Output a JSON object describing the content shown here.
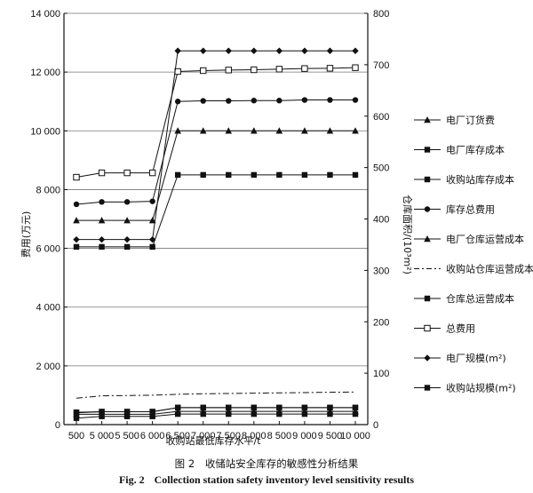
{
  "chart_data": {
    "type": "line",
    "categories": [
      "500",
      "5 000",
      "5 500",
      "6 000",
      "6 500",
      "7 000",
      "7 500",
      "8 000",
      "8 500",
      "9 000",
      "9 500",
      "10 000"
    ],
    "xlabel": "收购站最低库存水平/t",
    "ylabel_left": "费用(万元)",
    "ylabel_right": "仓库面积/(10³m²)",
    "ylim_left": [
      0,
      14000
    ],
    "yticks_left": [
      0,
      2000,
      4000,
      6000,
      8000,
      10000,
      12000,
      14000
    ],
    "ytick_labels_left": [
      "0",
      "2 000",
      "4 000",
      "6 000",
      "8 000",
      "10 000",
      "12 000",
      "14 000"
    ],
    "ylim_right": [
      0,
      800
    ],
    "yticks_right": [
      0,
      100,
      200,
      300,
      400,
      500,
      600,
      700,
      800
    ],
    "ytick_labels_right": [
      "0",
      "100",
      "200",
      "300",
      "400",
      "500",
      "600",
      "700",
      "800"
    ],
    "grid": true,
    "legend_position": "right",
    "series": [
      {
        "name": "电厂订货费",
        "marker": "triangle",
        "style": "solid",
        "axis": "left",
        "values": [
          350,
          350,
          350,
          350,
          450,
          450,
          450,
          450,
          450,
          450,
          450,
          450
        ]
      },
      {
        "name": "电厂库存成本",
        "marker": "square",
        "style": "solid",
        "axis": "left",
        "values": [
          220,
          280,
          280,
          280,
          360,
          360,
          360,
          360,
          360,
          360,
          360,
          360
        ]
      },
      {
        "name": "收购站库存成本",
        "marker": "square",
        "style": "solid",
        "axis": "left",
        "values": [
          6050,
          6050,
          6050,
          6050,
          8500,
          8500,
          8500,
          8500,
          8500,
          8500,
          8500,
          8500
        ]
      },
      {
        "name": "库存总费用",
        "marker": "circle",
        "style": "solid",
        "axis": "left",
        "values": [
          7500,
          7580,
          7580,
          7600,
          11000,
          11020,
          11020,
          11030,
          11030,
          11050,
          11050,
          11050
        ]
      },
      {
        "name": "电厂仓库运营成本",
        "marker": "triangle",
        "style": "solid",
        "axis": "left",
        "values": [
          6950,
          6950,
          6950,
          6950,
          10000,
          10000,
          10000,
          10000,
          10000,
          10000,
          10000,
          10000
        ]
      },
      {
        "name": "收购站仓库运营成本",
        "marker": "none",
        "style": "dashdot",
        "axis": "left",
        "values": [
          900,
          980,
          990,
          1000,
          1030,
          1050,
          1060,
          1070,
          1080,
          1090,
          1100,
          1110
        ]
      },
      {
        "name": "仓库总运营成本",
        "marker": "square",
        "style": "solid",
        "axis": "left",
        "values": [
          420,
          440,
          440,
          440,
          580,
          580,
          580,
          580,
          580,
          580,
          580,
          580
        ]
      },
      {
        "name": "总费用",
        "marker": "square-open",
        "style": "solid",
        "axis": "left",
        "values": [
          8420,
          8570,
          8570,
          8570,
          12020,
          12050,
          12070,
          12080,
          12100,
          12120,
          12130,
          12150
        ]
      },
      {
        "name": "电厂规模(m²)",
        "marker": "diamond",
        "style": "solid",
        "axis": "right",
        "values": [
          360,
          360,
          360,
          360,
          727,
          727,
          727,
          727,
          727,
          727,
          727,
          727
        ]
      },
      {
        "name": "收购站规模(m²)",
        "marker": "square",
        "style": "solid",
        "axis": "right",
        "values": [
          23,
          25,
          25,
          25,
          33,
          33,
          33,
          33,
          33,
          33,
          33,
          33
        ]
      }
    ]
  },
  "caption": {
    "cn_num": "图 2",
    "cn_text": "收储站安全库存的敏感性分析结果",
    "en_num": "Fig. 2",
    "en_text": "Collection station safety inventory level sensitivity results"
  }
}
